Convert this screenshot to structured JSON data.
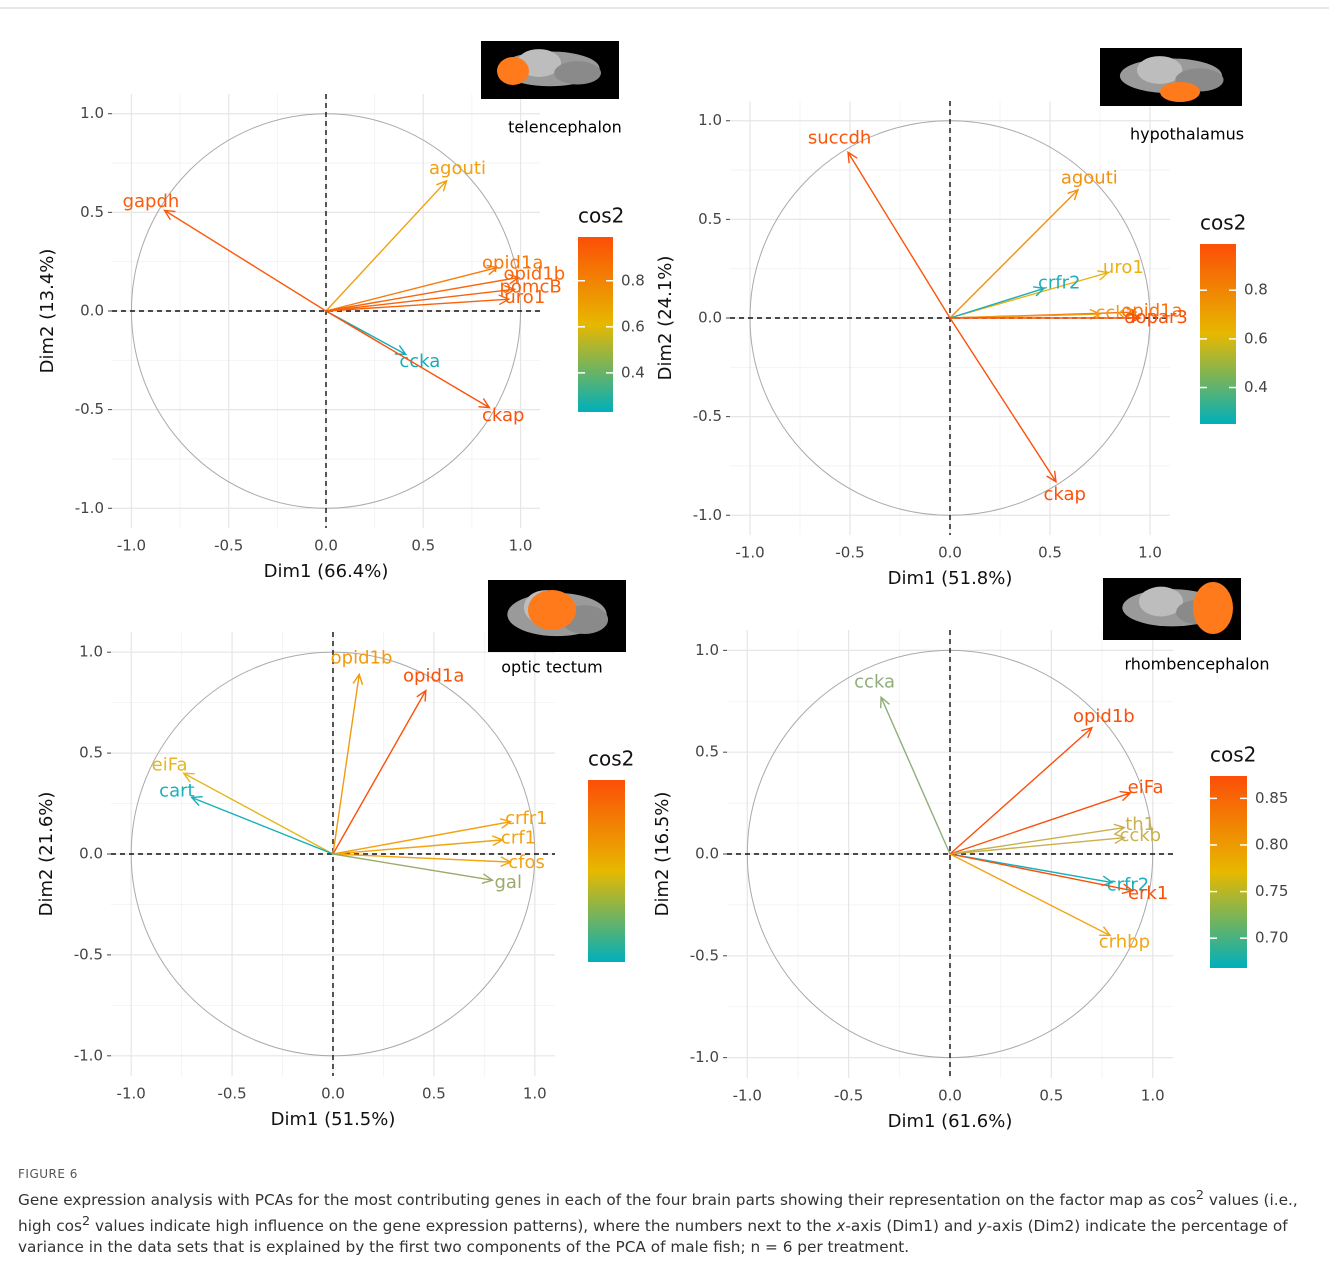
{
  "figure_label": "FIGURE 6",
  "caption": [
    "Gene expression analysis with PCAs for the most contributing genes in each of the four brain parts showing their representation on the factor map as cos",
    "2",
    " values (i.e., high cos",
    "2",
    " values indicate high influence on the gene expression patterns), where the numbers next to the ",
    "x",
    "-axis (Dim1) and ",
    "y",
    "-axis (Dim2) indicate the percentage of variance in the data sets that is explained by the first two components of the PCA of male fish; n = 6 per treatment."
  ],
  "chart_data": [
    {
      "type": "vector",
      "region": "telencephalon",
      "xlabel": "Dim1 (66.4%)",
      "ylabel": "Dim2 (13.4%)",
      "xlim": [
        -1.1,
        1.1
      ],
      "ylim": [
        -1.1,
        1.1
      ],
      "xticks": [
        {
          "value": -1,
          "label": "-1.0"
        },
        -0.5,
        {
          "value": 0,
          "label": "0.0"
        },
        0.5,
        {
          "value": 1,
          "label": "1.0"
        }
      ],
      "yticks": [
        {
          "value": -1,
          "label": "-1.0"
        },
        -0.5,
        {
          "value": 0,
          "label": "0.0"
        },
        0.5,
        {
          "value": 1,
          "label": "1.0"
        }
      ],
      "legend_title": "cos2",
      "colorbar_colors": [
        "#00AFBB",
        "#E7B800",
        "#FC4E07"
      ],
      "colorbar_lim": [
        0.23,
        0.99
      ],
      "colorbar_ticks": [
        0.4,
        0.6,
        0.8
      ],
      "labels": [
        "gapdh",
        "agouti",
        "opid1a",
        "opid1b",
        "pomcB",
        "uro1",
        "ccka",
        "ckap"
      ],
      "x": [
        -0.83,
        0.62,
        0.88,
        0.99,
        0.97,
        0.94,
        0.41,
        0.84
      ],
      "values": [
        0.51,
        0.66,
        0.22,
        0.17,
        0.11,
        0.06,
        -0.22,
        -0.49
      ],
      "colors": [
        "#FA5A0A",
        "#F0A010",
        "#F77A0A",
        "#F9650A",
        "#F9620A",
        "#F9620A",
        "#10AFB8",
        "#FA520A"
      ]
    },
    {
      "type": "vector",
      "region": "hypothalamus",
      "xlabel": "Dim1 (51.8%)",
      "ylabel": "Dim2 (24.1%)",
      "xlim": [
        -1.1,
        1.1
      ],
      "ylim": [
        -1.1,
        1.1
      ],
      "xticks": [
        {
          "value": -1,
          "label": "-1.0"
        },
        -0.5,
        {
          "value": 0,
          "label": "0.0"
        },
        0.5,
        {
          "value": 1,
          "label": "1.0"
        }
      ],
      "yticks": [
        {
          "value": -1,
          "label": "-1.0"
        },
        -0.5,
        {
          "value": 0,
          "label": "0.0"
        },
        0.5,
        {
          "value": 1,
          "label": "1.0"
        }
      ],
      "legend_title": "cos2",
      "colorbar_colors": [
        "#00AFBB",
        "#E7B800",
        "#FC4E07"
      ],
      "colorbar_lim": [
        0.25,
        0.99
      ],
      "colorbar_ticks": [
        0.4,
        0.6,
        0.8
      ],
      "labels": [
        "succdh",
        "agouti",
        "uro1",
        "crfr2",
        "opid1a",
        "ccka",
        "dopar3",
        "ckap"
      ],
      "x": [
        -0.51,
        0.64,
        0.79,
        0.47,
        0.93,
        0.75,
        0.95,
        0.53
      ],
      "values": [
        0.84,
        0.65,
        0.23,
        0.15,
        0.03,
        0.02,
        0.0,
        -0.83
      ],
      "colors": [
        "#FA550A",
        "#F29010",
        "#EDB010",
        "#20AFB5",
        "#F7700A",
        "#F39A10",
        "#FA500A",
        "#FA520A"
      ]
    },
    {
      "type": "vector",
      "region": "optic tectum",
      "xlabel": "Dim1 (51.5%)",
      "ylabel": "Dim2 (21.6%)",
      "xlim": [
        -1.1,
        1.1
      ],
      "ylim": [
        -1.1,
        1.1
      ],
      "xticks": [
        {
          "value": -1,
          "label": "-1.0"
        },
        -0.5,
        {
          "value": 0,
          "label": "0.0"
        },
        0.5,
        {
          "value": 1,
          "label": "1.0"
        }
      ],
      "yticks": [
        {
          "value": -1,
          "label": "-1.0"
        },
        -0.5,
        {
          "value": 0,
          "label": "0.0"
        },
        0.5,
        {
          "value": 1,
          "label": "1.0"
        }
      ],
      "legend_title": "cos2",
      "colorbar_colors": [
        "#00AFBB",
        "#E7B800",
        "#FC4E07"
      ],
      "colorbar_lim": [
        0.3,
        0.99
      ],
      "labels": [
        "opid1b",
        "opid1a",
        "eiFa",
        "cart",
        "crfr1",
        "crf1",
        "cfos",
        "gal"
      ],
      "x": [
        0.13,
        0.46,
        -0.74,
        -0.7,
        0.88,
        0.84,
        0.88,
        0.79
      ],
      "values": [
        0.89,
        0.81,
        0.4,
        0.28,
        0.16,
        0.07,
        -0.04,
        -0.13
      ],
      "colors": [
        "#F29A10",
        "#FA520A",
        "#E3B820",
        "#18AFB8",
        "#F5A010",
        "#F0A510",
        "#F3A510",
        "#9AAA6A"
      ]
    },
    {
      "type": "vector",
      "region": "rhombencephalon",
      "xlabel": "Dim1 (61.6%)",
      "ylabel": "Dim2 (16.5%)",
      "xlim": [
        -1.1,
        1.1
      ],
      "ylim": [
        -1.1,
        1.1
      ],
      "xticks": [
        {
          "value": -1,
          "label": "-1.0"
        },
        -0.5,
        {
          "value": 0,
          "label": "0.0"
        },
        0.5,
        {
          "value": 1,
          "label": "1.0"
        }
      ],
      "yticks": [
        {
          "value": -1,
          "label": "-1.0"
        },
        -0.5,
        {
          "value": 0,
          "label": "0.0"
        },
        0.5,
        {
          "value": 1,
          "label": "1.0"
        }
      ],
      "legend_title": "cos2",
      "colorbar_colors": [
        "#00AFBB",
        "#E7B800",
        "#FC4E07"
      ],
      "colorbar_lim": [
        0.668,
        0.874
      ],
      "colorbar_ticks": [
        {
          "value": 0.7,
          "label": "0.70"
        },
        0.75,
        {
          "value": 0.8,
          "label": "0.80"
        },
        0.85
      ],
      "labels": [
        "ccka",
        "opid1b",
        "eiFa",
        "th1",
        "cckb",
        "crfr2",
        "erk1",
        "crhbp"
      ],
      "x": [
        -0.34,
        0.7,
        0.89,
        0.86,
        0.86,
        0.8,
        0.9,
        0.79
      ],
      "values": [
        0.77,
        0.62,
        0.3,
        0.13,
        0.08,
        -0.14,
        -0.18,
        -0.4
      ],
      "colors": [
        "#8FAE7A",
        "#FA500A",
        "#FA520A",
        "#C8B050",
        "#C9B050",
        "#18B0BA",
        "#FA500A",
        "#F2A515"
      ]
    }
  ]
}
